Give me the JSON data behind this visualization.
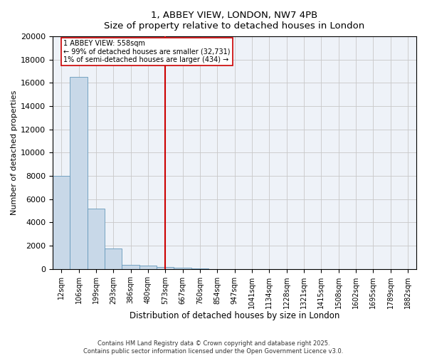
{
  "title_line1": "1, ABBEY VIEW, LONDON, NW7 4PB",
  "title_line2": "Size of property relative to detached houses in London",
  "xlabel": "Distribution of detached houses by size in London",
  "ylabel": "Number of detached properties",
  "categories": [
    "12sqm",
    "106sqm",
    "199sqm",
    "293sqm",
    "386sqm",
    "480sqm",
    "573sqm",
    "667sqm",
    "760sqm",
    "854sqm",
    "947sqm",
    "1041sqm",
    "1134sqm",
    "1228sqm",
    "1321sqm",
    "1415sqm",
    "1508sqm",
    "1602sqm",
    "1695sqm",
    "1789sqm",
    "1882sqm"
  ],
  "values": [
    8000,
    16500,
    5200,
    1750,
    350,
    280,
    190,
    110,
    50,
    0,
    0,
    0,
    0,
    0,
    0,
    0,
    0,
    0,
    0,
    0,
    0
  ],
  "bar_color": "#c8d8e8",
  "bar_edge_color": "#6699bb",
  "grid_color": "#c8c8c8",
  "background_color": "#eef2f8",
  "vline_x": 6,
  "vline_color": "#cc0000",
  "vline_label": "1 ABBEY VIEW: 558sqm",
  "annotation_smaller": "← 99% of detached houses are smaller (32,731)",
  "annotation_larger": "1% of semi-detached houses are larger (434) →",
  "box_color": "#cc0000",
  "ylim": [
    0,
    20000
  ],
  "yticks": [
    0,
    2000,
    4000,
    6000,
    8000,
    10000,
    12000,
    14000,
    16000,
    18000,
    20000
  ],
  "footer_line1": "Contains HM Land Registry data © Crown copyright and database right 2025.",
  "footer_line2": "Contains public sector information licensed under the Open Government Licence v3.0."
}
